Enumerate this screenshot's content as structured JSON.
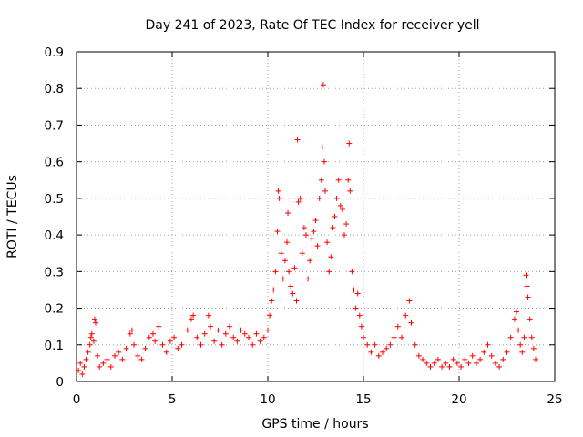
{
  "chart_data": {
    "type": "scatter",
    "title": "Day 241 of 2023, Rate Of TEC Index for receiver yell",
    "xlabel": "GPS time / hours",
    "ylabel": "ROTI / TECUs",
    "xlim": [
      0,
      25
    ],
    "ylim": [
      0,
      0.9
    ],
    "xticks": [
      "0",
      "5",
      "10",
      "15",
      "20",
      "25"
    ],
    "yticks": [
      "0",
      "0.1",
      "0.2",
      "0.3",
      "0.4",
      "0.5",
      "0.6",
      "0.7",
      "0.8",
      "0.9"
    ],
    "grid": true,
    "marker": "+",
    "color": "#ff0000",
    "series": [
      {
        "name": "ROTI",
        "points": [
          [
            0.1,
            0.03
          ],
          [
            0.2,
            0.05
          ],
          [
            0.3,
            0.02
          ],
          [
            0.4,
            0.04
          ],
          [
            0.5,
            0.06
          ],
          [
            0.6,
            0.08
          ],
          [
            0.7,
            0.1
          ],
          [
            0.75,
            0.12
          ],
          [
            0.8,
            0.13
          ],
          [
            0.9,
            0.11
          ],
          [
            0.95,
            0.17
          ],
          [
            1.0,
            0.16
          ],
          [
            1.1,
            0.07
          ],
          [
            1.2,
            0.04
          ],
          [
            1.4,
            0.05
          ],
          [
            1.6,
            0.06
          ],
          [
            1.8,
            0.04
          ],
          [
            2.0,
            0.07
          ],
          [
            2.2,
            0.08
          ],
          [
            2.4,
            0.06
          ],
          [
            2.6,
            0.09
          ],
          [
            2.8,
            0.13
          ],
          [
            2.9,
            0.14
          ],
          [
            3.0,
            0.1
          ],
          [
            3.2,
            0.07
          ],
          [
            3.4,
            0.06
          ],
          [
            3.6,
            0.09
          ],
          [
            3.8,
            0.12
          ],
          [
            4.0,
            0.13
          ],
          [
            4.1,
            0.11
          ],
          [
            4.3,
            0.15
          ],
          [
            4.5,
            0.1
          ],
          [
            4.7,
            0.08
          ],
          [
            4.9,
            0.11
          ],
          [
            5.1,
            0.12
          ],
          [
            5.3,
            0.09
          ],
          [
            5.5,
            0.1
          ],
          [
            5.8,
            0.14
          ],
          [
            6.0,
            0.17
          ],
          [
            6.1,
            0.18
          ],
          [
            6.3,
            0.12
          ],
          [
            6.5,
            0.1
          ],
          [
            6.7,
            0.13
          ],
          [
            6.9,
            0.18
          ],
          [
            7.0,
            0.15
          ],
          [
            7.2,
            0.11
          ],
          [
            7.4,
            0.14
          ],
          [
            7.6,
            0.1
          ],
          [
            7.8,
            0.13
          ],
          [
            8.0,
            0.15
          ],
          [
            8.2,
            0.12
          ],
          [
            8.4,
            0.11
          ],
          [
            8.6,
            0.14
          ],
          [
            8.8,
            0.13
          ],
          [
            9.0,
            0.12
          ],
          [
            9.2,
            0.1
          ],
          [
            9.4,
            0.13
          ],
          [
            9.6,
            0.11
          ],
          [
            9.8,
            0.12
          ],
          [
            10.0,
            0.14
          ],
          [
            10.1,
            0.18
          ],
          [
            10.2,
            0.22
          ],
          [
            10.3,
            0.25
          ],
          [
            10.4,
            0.3
          ],
          [
            10.5,
            0.41
          ],
          [
            10.55,
            0.52
          ],
          [
            10.6,
            0.5
          ],
          [
            10.7,
            0.35
          ],
          [
            10.8,
            0.28
          ],
          [
            10.9,
            0.33
          ],
          [
            11.0,
            0.38
          ],
          [
            11.05,
            0.46
          ],
          [
            11.1,
            0.3
          ],
          [
            11.2,
            0.26
          ],
          [
            11.3,
            0.24
          ],
          [
            11.4,
            0.31
          ],
          [
            11.5,
            0.22
          ],
          [
            11.55,
            0.66
          ],
          [
            11.6,
            0.49
          ],
          [
            11.7,
            0.5
          ],
          [
            11.8,
            0.35
          ],
          [
            11.9,
            0.42
          ],
          [
            12.0,
            0.4
          ],
          [
            12.1,
            0.28
          ],
          [
            12.2,
            0.33
          ],
          [
            12.3,
            0.39
          ],
          [
            12.4,
            0.41
          ],
          [
            12.5,
            0.44
          ],
          [
            12.6,
            0.37
          ],
          [
            12.7,
            0.5
          ],
          [
            12.8,
            0.55
          ],
          [
            12.85,
            0.64
          ],
          [
            12.9,
            0.81
          ],
          [
            12.95,
            0.6
          ],
          [
            13.0,
            0.52
          ],
          [
            13.1,
            0.38
          ],
          [
            13.2,
            0.3
          ],
          [
            13.3,
            0.34
          ],
          [
            13.4,
            0.42
          ],
          [
            13.5,
            0.45
          ],
          [
            13.6,
            0.5
          ],
          [
            13.7,
            0.55
          ],
          [
            13.8,
            0.48
          ],
          [
            13.9,
            0.47
          ],
          [
            14.0,
            0.4
          ],
          [
            14.1,
            0.43
          ],
          [
            14.2,
            0.55
          ],
          [
            14.25,
            0.65
          ],
          [
            14.3,
            0.52
          ],
          [
            14.4,
            0.3
          ],
          [
            14.5,
            0.25
          ],
          [
            14.6,
            0.2
          ],
          [
            14.7,
            0.24
          ],
          [
            14.8,
            0.18
          ],
          [
            14.9,
            0.15
          ],
          [
            15.0,
            0.12
          ],
          [
            15.2,
            0.1
          ],
          [
            15.4,
            0.08
          ],
          [
            15.6,
            0.1
          ],
          [
            15.8,
            0.07
          ],
          [
            16.0,
            0.08
          ],
          [
            16.2,
            0.09
          ],
          [
            16.4,
            0.1
          ],
          [
            16.6,
            0.12
          ],
          [
            16.8,
            0.15
          ],
          [
            17.0,
            0.12
          ],
          [
            17.2,
            0.18
          ],
          [
            17.4,
            0.22
          ],
          [
            17.5,
            0.16
          ],
          [
            17.7,
            0.1
          ],
          [
            17.9,
            0.07
          ],
          [
            18.1,
            0.06
          ],
          [
            18.3,
            0.05
          ],
          [
            18.5,
            0.04
          ],
          [
            18.7,
            0.05
          ],
          [
            18.9,
            0.06
          ],
          [
            19.1,
            0.04
          ],
          [
            19.3,
            0.05
          ],
          [
            19.5,
            0.04
          ],
          [
            19.7,
            0.06
          ],
          [
            19.9,
            0.05
          ],
          [
            20.1,
            0.04
          ],
          [
            20.3,
            0.06
          ],
          [
            20.5,
            0.05
          ],
          [
            20.7,
            0.07
          ],
          [
            20.9,
            0.05
          ],
          [
            21.1,
            0.06
          ],
          [
            21.3,
            0.08
          ],
          [
            21.5,
            0.1
          ],
          [
            21.7,
            0.07
          ],
          [
            21.9,
            0.05
          ],
          [
            22.1,
            0.04
          ],
          [
            22.3,
            0.06
          ],
          [
            22.5,
            0.08
          ],
          [
            22.7,
            0.12
          ],
          [
            22.9,
            0.17
          ],
          [
            23.0,
            0.19
          ],
          [
            23.1,
            0.14
          ],
          [
            23.2,
            0.1
          ],
          [
            23.3,
            0.08
          ],
          [
            23.4,
            0.12
          ],
          [
            23.5,
            0.29
          ],
          [
            23.55,
            0.26
          ],
          [
            23.6,
            0.23
          ],
          [
            23.7,
            0.17
          ],
          [
            23.8,
            0.12
          ],
          [
            23.9,
            0.09
          ],
          [
            24.0,
            0.06
          ]
        ]
      }
    ]
  }
}
